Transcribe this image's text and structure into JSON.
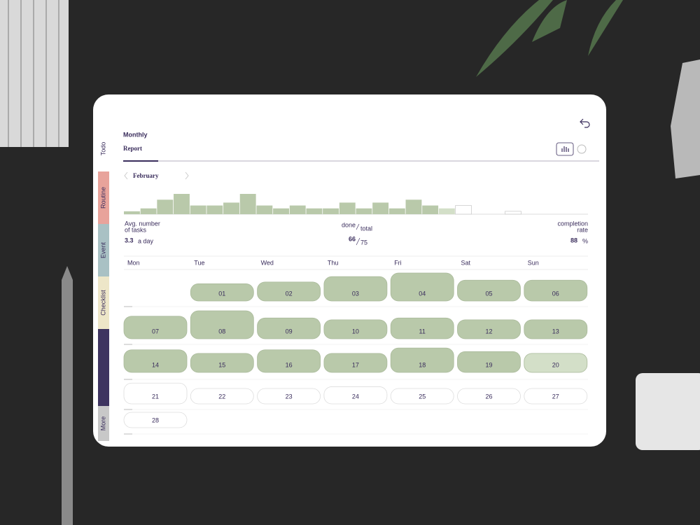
{
  "tabs": [
    "Todo",
    "Routine",
    "Event",
    "Checklist",
    "More"
  ],
  "header": {
    "kicker": "Monthly",
    "title": "Report"
  },
  "month": "February",
  "chart_data": {
    "type": "bar",
    "values": [
      1,
      2,
      5,
      7,
      3,
      3,
      4,
      7,
      3,
      2,
      3,
      2,
      2,
      4,
      2,
      4,
      2,
      5,
      3,
      2,
      3,
      0,
      0,
      1,
      0,
      0,
      0,
      0
    ],
    "colors": [
      "#b9c9aa",
      "#b9c9aa",
      "#b9c9aa",
      "#b9c9aa",
      "#b9c9aa",
      "#b9c9aa",
      "#b9c9aa",
      "#b9c9aa",
      "#b9c9aa",
      "#b9c9aa",
      "#b9c9aa",
      "#b9c9aa",
      "#b9c9aa",
      "#b9c9aa",
      "#b9c9aa",
      "#b9c9aa",
      "#b9c9aa",
      "#b9c9aa",
      "#b9c9aa",
      "#d3dfc8",
      "#ffffff",
      "#ffffff",
      "#ffffff",
      "#ffffff",
      "#ffffff",
      "#ffffff",
      "#ffffff",
      "#ffffff"
    ]
  },
  "stats": {
    "avg_label": [
      "Avg. number",
      "of tasks"
    ],
    "avg": 3.3,
    "avg_unit": "a day",
    "done_label": "done",
    "total_label": "total",
    "done": 66,
    "total": 75,
    "rate_label": [
      "completion",
      "rate"
    ],
    "rate": 88,
    "rate_unit": "%"
  },
  "calendar": {
    "weekdays": [
      "Mon",
      "Tue",
      "Wed",
      "Thu",
      "Fri",
      "Sat",
      "Sun"
    ],
    "weeks": [
      [
        null,
        "01",
        "02",
        "03",
        "04",
        "05",
        "06"
      ],
      [
        "07",
        "08",
        "09",
        "10",
        "11",
        "12",
        "13"
      ],
      [
        "14",
        "15",
        "16",
        "17",
        "18",
        "19",
        "20"
      ],
      [
        "21",
        "22",
        "23",
        "24",
        "25",
        "26",
        "27"
      ],
      [
        "28"
      ]
    ]
  }
}
